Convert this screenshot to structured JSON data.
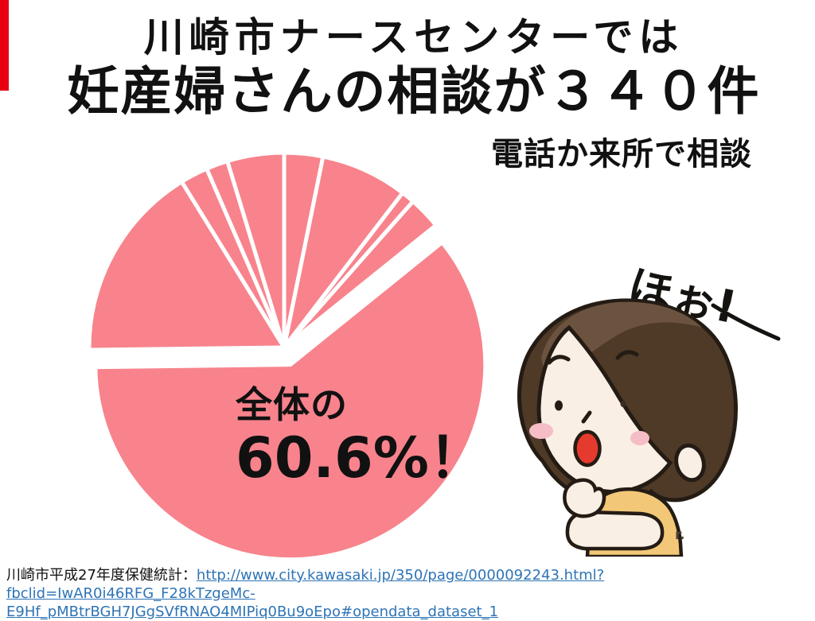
{
  "page": {
    "accent_bar_color": "#e60012",
    "background": "#ffffff"
  },
  "header": {
    "title_line1": "川崎市ナースセンターでは",
    "title_line2": "妊産婦さんの相談が３４０件",
    "subtitle": "電話か来所で相談"
  },
  "chart_data": {
    "type": "pie",
    "values": [
      3.2,
      7.2,
      1.1,
      2.7,
      60.6,
      16.4,
      2.3,
      1.8,
      4.7
    ],
    "unit": "%",
    "start_angle_deg": 0,
    "direction": "clockwise",
    "slice_color": "#f8838c",
    "gap_color": "#ffffff",
    "highlight_index": 4,
    "highlight_value_percent": 60.6,
    "exploded_highlight": true,
    "center_label": {
      "line1": "全体の",
      "line2": "60.6%！"
    },
    "legend": "none",
    "notes": "all slices same pink color, largest slice pulled out"
  },
  "figure": {
    "speech": "ほぉ!",
    "signature": "r.",
    "colors": {
      "hair_dark": "#4e3a27",
      "hair_light": "#6b5340",
      "skin": "#f9efe4",
      "blush": "#f5bdc5",
      "mouth": "#e53a2e",
      "shirt": "#f2c878",
      "outline": "#241c14"
    }
  },
  "source": {
    "label": "川崎市平成27年度保健統計：",
    "link_line1": "http://www.city.kawasaki.jp/350/page/0000092243.html?fbclid=IwAR0i46RFG_F28kTzgeMc-",
    "link_line2": "E9Hf_pMBtrBGH7JGgSVfRNAO4MIPiq0Bu9oEpo#opendata_dataset_1",
    "link_color": "#2e74b5"
  }
}
